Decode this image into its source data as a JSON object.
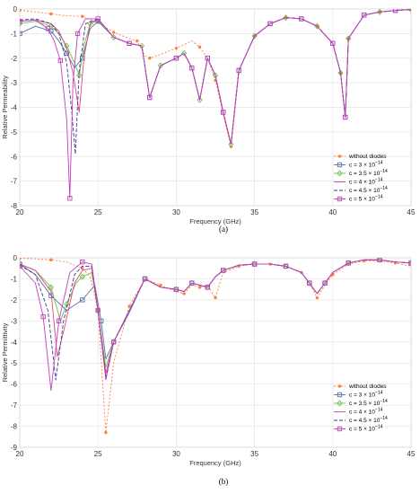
{
  "chart_data": [
    {
      "type": "line",
      "panel_label": "(a)",
      "xlabel": "Frequency (GHz)",
      "ylabel": "Relative Permeability",
      "xlim": [
        20,
        45
      ],
      "ylim": [
        -8,
        0
      ],
      "xticks": [
        20,
        25,
        30,
        35,
        40,
        45
      ],
      "yticks": [
        -8,
        -7,
        -6,
        -5,
        -4,
        -3,
        -2,
        -1,
        0
      ],
      "grid": true,
      "legend_position": "lower-right",
      "series": [
        {
          "name": "without diodes",
          "color": "#ff7f3f",
          "dash": "2,2",
          "marker": "star",
          "x": [
            20,
            21,
            22,
            23,
            24,
            25,
            26,
            27,
            27.5,
            28,
            28.3,
            29,
            30,
            31,
            31.5,
            32,
            32.5,
            33,
            33.5,
            34,
            35,
            36,
            37,
            38,
            39,
            40,
            40.5,
            40.8,
            41,
            42,
            43,
            44,
            45
          ],
          "y": [
            -0.05,
            -0.12,
            -0.2,
            -0.28,
            -0.3,
            -0.55,
            -0.95,
            -1.2,
            -1.3,
            -1.9,
            -2.0,
            -1.85,
            -1.6,
            -1.3,
            -1.55,
            -2.0,
            -2.9,
            -4.3,
            -5.6,
            -2.5,
            -1.1,
            -0.6,
            -0.35,
            -0.4,
            -0.7,
            -1.4,
            -2.6,
            -4.4,
            -1.2,
            -0.25,
            -0.12,
            -0.06,
            -0.02
          ]
        },
        {
          "name": "c = 3 × 10⁻¹⁴",
          "color": "#5a6fa8",
          "dash": "",
          "marker": "square",
          "x": [
            20,
            21,
            22,
            22.5,
            23,
            23.5,
            24,
            24.5,
            25,
            26,
            27,
            27.8,
            28.3,
            29,
            30,
            30.5,
            31,
            31.5,
            32,
            32.5,
            33,
            33.5,
            34,
            35,
            36,
            37,
            38,
            39,
            40,
            40.5,
            40.8,
            41,
            42,
            43,
            44,
            45
          ],
          "y": [
            -1.0,
            -0.7,
            -0.9,
            -1.3,
            -1.8,
            -2.4,
            -2.0,
            -0.8,
            -0.5,
            -1.15,
            -1.4,
            -1.5,
            -3.6,
            -2.3,
            -2.0,
            -1.8,
            -2.4,
            -3.7,
            -2.0,
            -2.7,
            -4.2,
            -5.5,
            -2.5,
            -1.1,
            -0.6,
            -0.35,
            -0.4,
            -0.7,
            -1.4,
            -2.6,
            -4.4,
            -1.2,
            -0.25,
            -0.12,
            -0.06,
            -0.02
          ]
        },
        {
          "name": "c = 3.5 × 10⁻¹⁴",
          "color": "#6abf4b",
          "dash": "",
          "marker": "diamond",
          "x": [
            20,
            21,
            22,
            22.5,
            23,
            23.5,
            23.8,
            24.1,
            24.5,
            25,
            26,
            27,
            27.8,
            28.3,
            29,
            30,
            30.5,
            31,
            31.5,
            32,
            32.5,
            33,
            33.5,
            34,
            35,
            36,
            37,
            38,
            39,
            40,
            40.5,
            40.8,
            41,
            42,
            43,
            44,
            45
          ],
          "y": [
            -0.6,
            -0.5,
            -0.7,
            -1.0,
            -1.5,
            -2.2,
            -2.7,
            -1.5,
            -0.6,
            -0.45,
            -1.15,
            -1.4,
            -1.5,
            -3.6,
            -2.3,
            -2.0,
            -1.8,
            -2.4,
            -3.7,
            -2.0,
            -2.7,
            -4.2,
            -5.5,
            -2.5,
            -1.1,
            -0.6,
            -0.35,
            -0.4,
            -0.7,
            -1.4,
            -2.6,
            -4.4,
            -1.2,
            -0.25,
            -0.12,
            -0.06,
            -0.02
          ]
        },
        {
          "name": "c = 4 × 10⁻¹⁴",
          "color": "#e0457a",
          "dash": "",
          "marker": "none",
          "x": [
            20,
            21,
            22,
            22.5,
            23,
            23.4,
            23.8,
            24.1,
            24.5,
            25,
            26,
            27,
            27.8,
            28.3,
            29,
            30,
            30.5,
            31,
            31.5,
            32,
            32.5,
            33,
            33.5,
            34,
            35,
            36,
            37,
            38,
            39,
            40,
            40.5,
            40.8,
            41,
            42,
            43,
            44,
            45
          ],
          "y": [
            -0.5,
            -0.45,
            -0.6,
            -0.9,
            -1.6,
            -2.6,
            -4.2,
            -2.0,
            -0.6,
            -0.4,
            -1.15,
            -1.4,
            -1.5,
            -3.6,
            -2.3,
            -2.0,
            -1.8,
            -2.4,
            -3.7,
            -2.0,
            -2.7,
            -4.2,
            -5.5,
            -2.5,
            -1.1,
            -0.6,
            -0.35,
            -0.4,
            -0.7,
            -1.4,
            -2.6,
            -4.4,
            -1.2,
            -0.25,
            -0.12,
            -0.06,
            -0.02
          ]
        },
        {
          "name": "c = 4.5 × 10⁻¹⁴",
          "color": "#3b3b8f",
          "dash": "4,2",
          "marker": "none",
          "x": [
            20,
            21,
            22,
            22.5,
            23,
            23.3,
            23.55,
            23.8,
            24.2,
            25,
            26,
            27,
            27.8,
            28.3,
            29,
            30,
            30.5,
            31,
            31.5,
            32,
            32.5,
            33,
            33.5,
            34,
            35,
            36,
            37,
            38,
            39,
            40,
            40.5,
            40.8,
            41,
            42,
            43,
            44,
            45
          ],
          "y": [
            -0.45,
            -0.4,
            -0.6,
            -1.0,
            -2.2,
            -4.0,
            -5.9,
            -2.5,
            -0.6,
            -0.4,
            -1.15,
            -1.4,
            -1.5,
            -3.6,
            -2.3,
            -2.0,
            -1.8,
            -2.4,
            -3.7,
            -2.0,
            -2.7,
            -4.2,
            -5.5,
            -2.5,
            -1.1,
            -0.6,
            -0.35,
            -0.4,
            -0.7,
            -1.4,
            -2.6,
            -4.4,
            -1.2,
            -0.25,
            -0.12,
            -0.06,
            -0.02
          ]
        },
        {
          "name": "c = 5 × 10⁻¹⁴",
          "color": "#c040c0",
          "dash": "",
          "marker": "square",
          "x": [
            20,
            21,
            21.8,
            22.2,
            22.6,
            23,
            23.2,
            23.4,
            23.7,
            24.2,
            25,
            26,
            27,
            27.8,
            28.3,
            29,
            30,
            30.5,
            31,
            31.5,
            32,
            32.5,
            33,
            33.5,
            34,
            35,
            36,
            37,
            38,
            39,
            40,
            40.5,
            40.8,
            41,
            42,
            43,
            44,
            45
          ],
          "y": [
            -0.5,
            -0.45,
            -0.8,
            -1.3,
            -2.1,
            -4.5,
            -7.7,
            -3.0,
            -1.0,
            -0.4,
            -0.4,
            -1.15,
            -1.4,
            -1.5,
            -3.6,
            -2.3,
            -2.0,
            -1.8,
            -2.4,
            -3.7,
            -2.0,
            -2.7,
            -4.2,
            -5.5,
            -2.5,
            -1.1,
            -0.6,
            -0.35,
            -0.4,
            -0.7,
            -1.4,
            -2.6,
            -4.4,
            -1.2,
            -0.25,
            -0.12,
            -0.06,
            -0.02
          ]
        }
      ]
    },
    {
      "type": "line",
      "panel_label": "(b)",
      "xlabel": "Frequency (GHz)",
      "ylabel": "Relative Permittivity",
      "xlim": [
        20,
        45
      ],
      "ylim": [
        -9,
        0
      ],
      "xticks": [
        20,
        25,
        30,
        35,
        40,
        45
      ],
      "yticks": [
        -9,
        -8,
        -7,
        -6,
        -5,
        -4,
        -3,
        -2,
        -1,
        0
      ],
      "grid": true,
      "legend_position": "lower-right",
      "series": [
        {
          "name": "without diodes",
          "color": "#ff7f3f",
          "dash": "2,2",
          "marker": "star",
          "x": [
            20,
            21,
            22,
            23,
            24,
            24.5,
            25,
            25.3,
            25.5,
            26,
            27,
            28,
            29,
            30,
            30.5,
            31,
            31.5,
            32,
            32.5,
            33,
            34,
            35,
            36,
            37,
            38,
            38.5,
            39,
            39.5,
            40,
            41,
            42,
            43,
            44,
            45
          ],
          "y": [
            -0.02,
            -0.05,
            -0.1,
            -0.2,
            -0.5,
            -0.9,
            -2.5,
            -6.0,
            -8.3,
            -5.0,
            -2.3,
            -1.0,
            -1.3,
            -1.6,
            -1.7,
            -1.3,
            -1.4,
            -1.3,
            -1.9,
            -0.7,
            -0.4,
            -0.3,
            -0.3,
            -0.4,
            -0.7,
            -1.2,
            -1.9,
            -1.3,
            -0.8,
            -0.3,
            -0.15,
            -0.15,
            -0.25,
            -0.4
          ]
        },
        {
          "name": "c = 3 × 10⁻¹⁴",
          "color": "#5a6fa8",
          "dash": "",
          "marker": "square",
          "x": [
            20,
            21,
            22,
            23,
            24,
            24.8,
            25.2,
            25.5,
            26,
            27,
            28,
            29,
            30,
            30.5,
            31,
            31.5,
            32,
            32.5,
            33,
            34,
            35,
            36,
            37,
            38,
            38.5,
            39,
            39.5,
            40,
            41,
            42,
            43,
            44,
            45
          ],
          "y": [
            -0.3,
            -0.8,
            -1.8,
            -2.5,
            -2.0,
            -1.3,
            -3.0,
            -4.8,
            -4.0,
            -2.6,
            -1.0,
            -1.4,
            -1.5,
            -1.6,
            -1.2,
            -1.3,
            -1.4,
            -0.9,
            -0.6,
            -0.35,
            -0.3,
            -0.3,
            -0.4,
            -0.7,
            -1.2,
            -1.7,
            -1.2,
            -0.7,
            -0.25,
            -0.1,
            -0.1,
            -0.2,
            -0.25
          ]
        },
        {
          "name": "c = 3.5 × 10⁻¹⁴",
          "color": "#6abf4b",
          "dash": "",
          "marker": "diamond",
          "x": [
            20,
            21,
            22,
            22.6,
            23,
            23.6,
            24,
            24.6,
            25,
            25.5,
            26,
            27,
            28,
            29,
            30,
            30.5,
            31,
            31.5,
            32,
            32.5,
            33,
            34,
            35,
            36,
            37,
            38,
            38.5,
            39,
            39.5,
            40,
            41,
            42,
            43,
            44,
            45
          ],
          "y": [
            -0.3,
            -0.6,
            -1.4,
            -3.0,
            -2.2,
            -1.2,
            -0.9,
            -0.7,
            -2.5,
            -5.2,
            -4.0,
            -2.5,
            -1.0,
            -1.4,
            -1.5,
            -1.6,
            -1.2,
            -1.3,
            -1.4,
            -0.9,
            -0.6,
            -0.35,
            -0.3,
            -0.3,
            -0.4,
            -0.7,
            -1.2,
            -1.7,
            -1.2,
            -0.7,
            -0.25,
            -0.1,
            -0.1,
            -0.2,
            -0.25
          ]
        },
        {
          "name": "c = 4 × 10⁻¹⁴",
          "color": "#e0457a",
          "dash": "",
          "marker": "none",
          "x": [
            20,
            21,
            22,
            22.4,
            22.8,
            23.5,
            24,
            24.6,
            25,
            25.5,
            26,
            27,
            28,
            29,
            30,
            30.5,
            31,
            31.5,
            32,
            32.5,
            33,
            34,
            35,
            36,
            37,
            38,
            38.5,
            39,
            39.5,
            40,
            41,
            42,
            43,
            44,
            45
          ],
          "y": [
            -0.3,
            -0.6,
            -1.6,
            -4.7,
            -3.5,
            -1.2,
            -0.6,
            -0.5,
            -2.5,
            -5.5,
            -4.0,
            -2.5,
            -1.0,
            -1.4,
            -1.5,
            -1.6,
            -1.2,
            -1.3,
            -1.4,
            -0.9,
            -0.6,
            -0.35,
            -0.3,
            -0.3,
            -0.4,
            -0.7,
            -1.2,
            -1.7,
            -1.2,
            -0.7,
            -0.25,
            -0.1,
            -0.1,
            -0.2,
            -0.25
          ]
        },
        {
          "name": "c = 4.5 × 10⁻¹⁴",
          "color": "#3b3b8f",
          "dash": "4,2",
          "marker": "none",
          "x": [
            20,
            21,
            21.8,
            22.3,
            22.8,
            23.5,
            24,
            24.6,
            25,
            25.5,
            26,
            27,
            28,
            29,
            30,
            30.5,
            31,
            31.5,
            32,
            32.5,
            33,
            34,
            35,
            36,
            37,
            38,
            38.5,
            39,
            39.5,
            40,
            41,
            42,
            43,
            44,
            45
          ],
          "y": [
            -0.35,
            -0.8,
            -2.5,
            -5.8,
            -3.0,
            -0.8,
            -0.4,
            -0.4,
            -2.5,
            -5.7,
            -4.0,
            -2.5,
            -1.0,
            -1.4,
            -1.5,
            -1.6,
            -1.2,
            -1.3,
            -1.4,
            -0.9,
            -0.6,
            -0.35,
            -0.3,
            -0.3,
            -0.4,
            -0.7,
            -1.2,
            -1.7,
            -1.2,
            -0.7,
            -0.25,
            -0.1,
            -0.1,
            -0.2,
            -0.25
          ]
        },
        {
          "name": "c = 5 × 10⁻¹⁴",
          "color": "#c040c0",
          "dash": "",
          "marker": "square",
          "x": [
            20,
            21,
            21.5,
            22,
            22.5,
            23.2,
            24,
            24.6,
            25,
            25.5,
            26,
            27,
            28,
            29,
            30,
            30.5,
            31,
            31.5,
            32,
            32.5,
            33,
            34,
            35,
            36,
            37,
            38,
            38.5,
            39,
            39.5,
            40,
            41,
            42,
            43,
            44,
            45
          ],
          "y": [
            -0.4,
            -1.2,
            -2.8,
            -6.3,
            -3.0,
            -0.7,
            -0.2,
            -0.3,
            -2.5,
            -5.8,
            -4.0,
            -2.5,
            -1.0,
            -1.4,
            -1.5,
            -1.6,
            -1.2,
            -1.3,
            -1.4,
            -0.9,
            -0.6,
            -0.35,
            -0.3,
            -0.3,
            -0.4,
            -0.7,
            -1.2,
            -1.7,
            -1.2,
            -0.7,
            -0.25,
            -0.1,
            -0.1,
            -0.2,
            -0.25
          ]
        }
      ]
    }
  ]
}
